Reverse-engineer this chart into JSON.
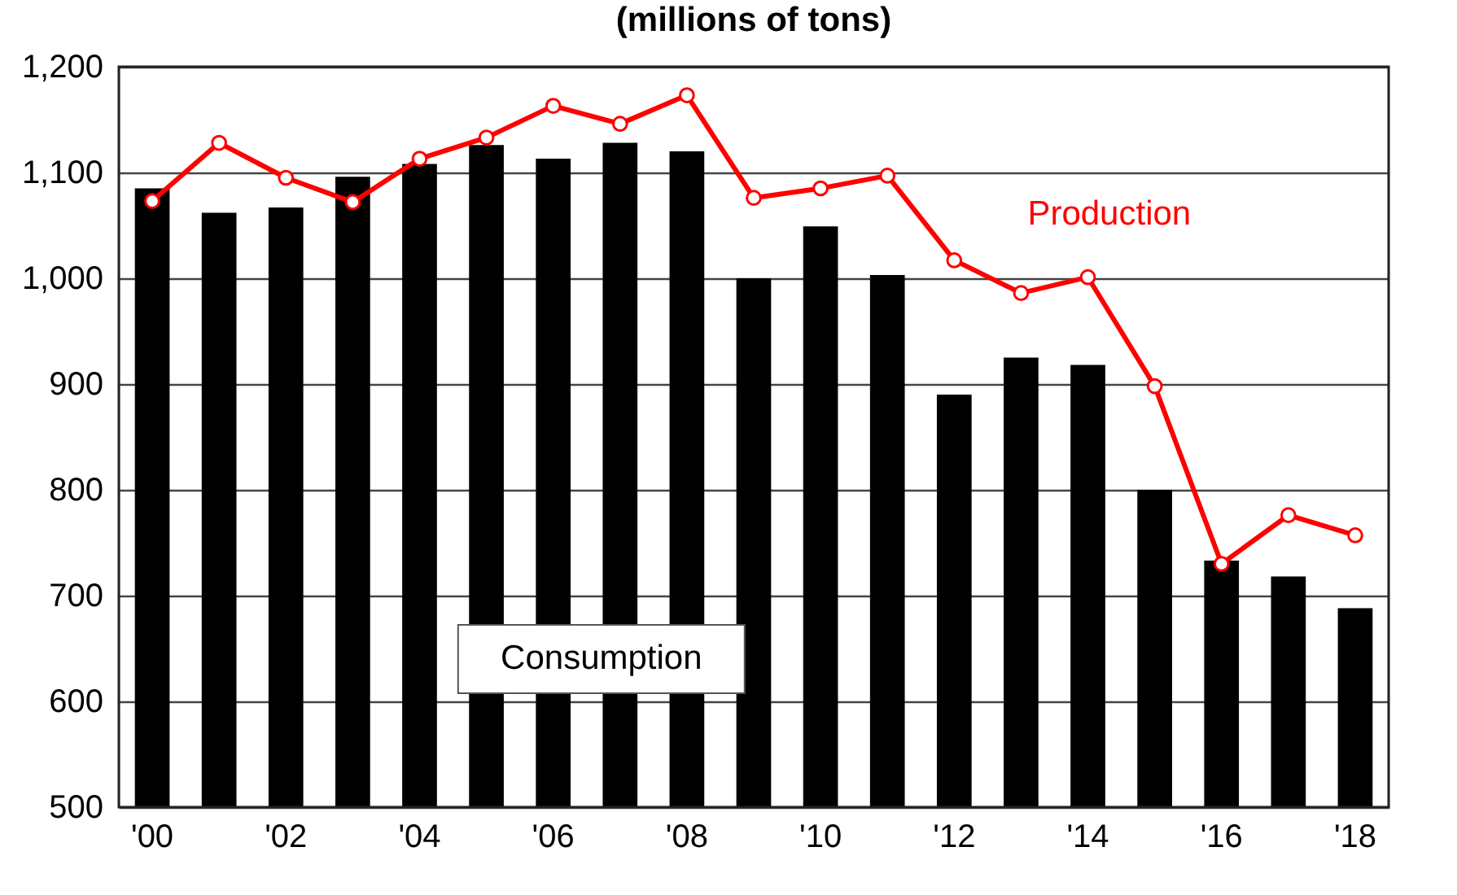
{
  "chart_data": {
    "type": "bar",
    "title": "(millions of tons)",
    "categories": [
      "'00",
      null,
      "'02",
      null,
      "'04",
      null,
      "'06",
      null,
      "'08",
      null,
      "'10",
      null,
      "'12",
      null,
      "'14",
      null,
      "'16",
      null,
      "'18"
    ],
    "series": [
      {
        "name": "Consumption",
        "color": "#000000",
        "values": [
          1085,
          1062,
          1067,
          1096,
          1108,
          1126,
          1113,
          1128,
          1120,
          1000,
          1049,
          1003,
          890,
          925,
          918,
          800,
          733,
          718,
          688
        ]
      },
      {
        "name": "Production",
        "type": "line",
        "color": "#ff0000",
        "values": [
          1073,
          1128,
          1095,
          1072,
          1113,
          1133,
          1163,
          1146,
          1173,
          1076,
          1085,
          1097,
          1017,
          986,
          1001,
          898,
          730,
          776,
          757
        ]
      }
    ],
    "ylim": [
      500,
      1200
    ],
    "yticks": [
      {
        "value": 500,
        "label": "500"
      },
      {
        "value": 600,
        "label": "600"
      },
      {
        "value": 700,
        "label": "700"
      },
      {
        "value": 800,
        "label": "800"
      },
      {
        "value": 900,
        "label": "900"
      },
      {
        "value": 1000,
        "label": "1,000"
      },
      {
        "value": 1100,
        "label": "1,100"
      },
      {
        "value": 1200,
        "label": "1,200"
      }
    ],
    "grid": "y",
    "marker": "circle",
    "line_style": "solid"
  }
}
